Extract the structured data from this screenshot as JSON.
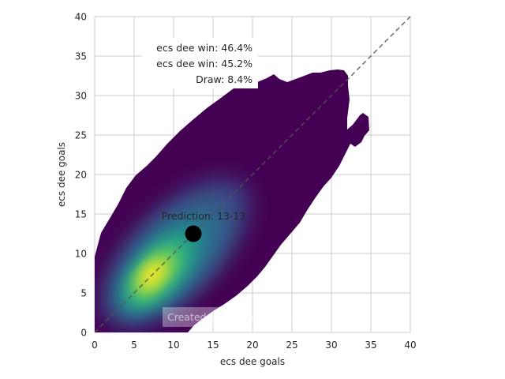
{
  "chart_data": {
    "type": "kde_contour",
    "xlabel": "ecs dee goals",
    "ylabel": "ecs dee goals",
    "xlim": [
      0,
      40
    ],
    "ylim": [
      0,
      40
    ],
    "xticks": [
      "0",
      "5",
      "10",
      "15",
      "20",
      "25",
      "30",
      "35",
      "40"
    ],
    "yticks": [
      "0",
      "5",
      "10",
      "15",
      "20",
      "25",
      "30",
      "35",
      "40"
    ],
    "grid": true,
    "colormap": "viridis",
    "density_peak": [
      8,
      7.5
    ],
    "prediction_point": {
      "x": 12.5,
      "y": 12.5,
      "label": "Prediction: 13-13"
    },
    "reference_line": {
      "from": [
        0,
        0
      ],
      "to": [
        40,
        40
      ],
      "style": "dashed"
    },
    "stats": [
      "ecs dee win: 46.4%",
      "ecs dee win: 45.2%",
      "Draw: 8.4%"
    ],
    "watermark": "Created by Michael Nefiodovas",
    "colors": {
      "low": "#440154",
      "mid": "#31688e",
      "high": "#35b779",
      "peak": "#fde725",
      "reference_line": "#555555",
      "point": "#000000"
    }
  }
}
